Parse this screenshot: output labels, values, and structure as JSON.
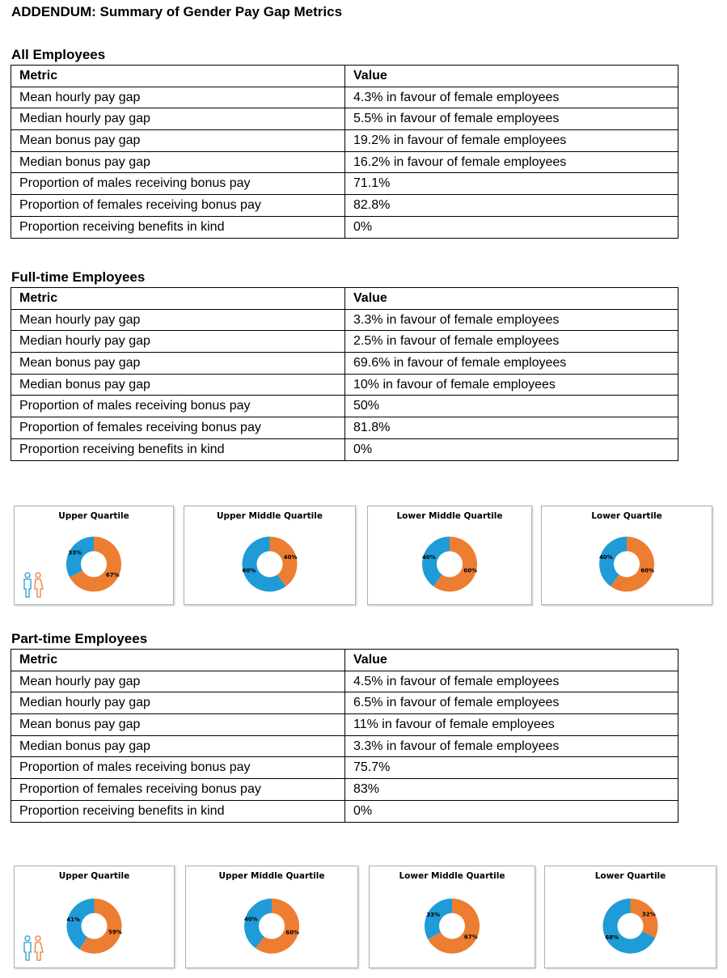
{
  "title": "ADDENDUM: Summary of Gender Pay Gap Metrics",
  "sections": [
    {
      "heading": "All Employees",
      "table": {
        "header": [
          "Metric",
          "Value"
        ],
        "rows": [
          [
            "Mean hourly pay gap",
            "4.3% in favour of female employees"
          ],
          [
            "Median hourly pay gap",
            "5.5% in favour of female employees"
          ],
          [
            "Mean bonus pay gap",
            "19.2% in favour of female employees"
          ],
          [
            "Median bonus pay gap",
            "16.2% in favour of female employees"
          ],
          [
            "Proportion of males receiving bonus pay",
            "71.1%"
          ],
          [
            "Proportion of females receiving bonus pay",
            "82.8%"
          ],
          [
            "Proportion receiving benefits in kind",
            "0%"
          ]
        ]
      }
    },
    {
      "heading": "Full-time Employees",
      "table": {
        "header": [
          "Metric",
          "Value"
        ],
        "rows": [
          [
            "Mean hourly pay gap",
            "3.3% in favour of female employees"
          ],
          [
            "Median hourly pay gap",
            "2.5% in favour of female employees"
          ],
          [
            "Mean bonus pay gap",
            "69.6% in favour of female employees"
          ],
          [
            "Median bonus pay gap",
            "10% in favour of female employees"
          ],
          [
            "Proportion of males receiving bonus pay",
            "50%"
          ],
          [
            "Proportion of females receiving bonus pay",
            "81.8%"
          ],
          [
            "Proportion receiving benefits in kind",
            "0%"
          ]
        ]
      },
      "charts": [
        {
          "type": "donut",
          "title": "Upper Quartile",
          "values": [
            67,
            33
          ],
          "value_labels": [
            "67%",
            "33%"
          ],
          "colors": [
            "#ed7d31",
            "#1f9bd7"
          ]
        },
        {
          "type": "donut",
          "title": "Upper Middle Quartile",
          "values": [
            40,
            60
          ],
          "value_labels": [
            "40%",
            "60%"
          ],
          "colors": [
            "#ed7d31",
            "#1f9bd7"
          ]
        },
        {
          "type": "donut",
          "title": "Lower Middle Quartile",
          "values": [
            60,
            40
          ],
          "value_labels": [
            "60%",
            "40%"
          ],
          "colors": [
            "#ed7d31",
            "#1f9bd7"
          ]
        },
        {
          "type": "donut",
          "title": "Lower Quartile",
          "values": [
            60,
            40
          ],
          "value_labels": [
            "60%",
            "40%"
          ],
          "colors": [
            "#ed7d31",
            "#1f9bd7"
          ]
        }
      ]
    },
    {
      "heading": "Part-time Employees",
      "table": {
        "header": [
          "Metric",
          "Value"
        ],
        "rows": [
          [
            "Mean hourly pay gap",
            "4.5% in favour of female employees"
          ],
          [
            "Median hourly pay gap",
            "6.5% in favour of female employees"
          ],
          [
            "Mean bonus pay gap",
            "11% in favour of female employees"
          ],
          [
            "Median bonus pay gap",
            "3.3% in favour of female employees"
          ],
          [
            "Proportion of males receiving bonus pay",
            "75.7%"
          ],
          [
            "Proportion of females receiving bonus pay",
            "83%"
          ],
          [
            "Proportion receiving benefits in kind",
            "0%"
          ]
        ]
      },
      "charts": [
        {
          "type": "donut",
          "title": "Upper Quartile",
          "values": [
            59,
            41
          ],
          "value_labels": [
            "59%",
            "41%"
          ],
          "colors": [
            "#ed7d31",
            "#1f9bd7"
          ]
        },
        {
          "type": "donut",
          "title": "Upper Middle Quartile",
          "values": [
            60,
            40
          ],
          "value_labels": [
            "60%",
            "40%"
          ],
          "colors": [
            "#ed7d31",
            "#1f9bd7"
          ]
        },
        {
          "type": "donut",
          "title": "Lower Middle Quartile",
          "values": [
            67,
            33
          ],
          "value_labels": [
            "67%",
            "33%"
          ],
          "colors": [
            "#ed7d31",
            "#1f9bd7"
          ]
        },
        {
          "type": "donut",
          "title": "Lower Quartile",
          "values": [
            32,
            68
          ],
          "value_labels": [
            "32%",
            "68%"
          ],
          "colors": [
            "#ed7d31",
            "#1f9bd7"
          ]
        }
      ]
    }
  ]
}
